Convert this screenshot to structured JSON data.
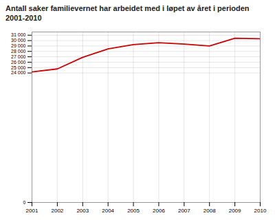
{
  "chart_data": {
    "type": "line",
    "title": "Antall saker familievernet har arbeidet med i løpet av året i perioden\n2001-2010",
    "x": [
      2001,
      2002,
      2003,
      2004,
      2005,
      2006,
      2007,
      2008,
      2009,
      2010
    ],
    "values": [
      24200,
      24750,
      26900,
      28450,
      29250,
      29600,
      29350,
      29000,
      30450,
      30350
    ],
    "color": "#cc0000",
    "xlim": [
      2001,
      2010
    ],
    "xticks": [
      2001,
      2002,
      2003,
      2004,
      2005,
      2006,
      2007,
      2008,
      2009,
      2010
    ],
    "ylim": [
      0,
      31600
    ],
    "yticks": [
      0,
      {
        "value": 24000,
        "label": "24 000"
      },
      {
        "value": 25000,
        "label": "25 000"
      },
      {
        "value": 26000,
        "label": "26 000"
      },
      {
        "value": 27000,
        "label": "27 000"
      },
      {
        "value": 28000,
        "label": "28 000"
      },
      {
        "value": 29000,
        "label": "29 000"
      },
      {
        "value": 30000,
        "label": "30 000"
      },
      {
        "value": 31000,
        "label": "31 000"
      }
    ],
    "grid": true
  }
}
